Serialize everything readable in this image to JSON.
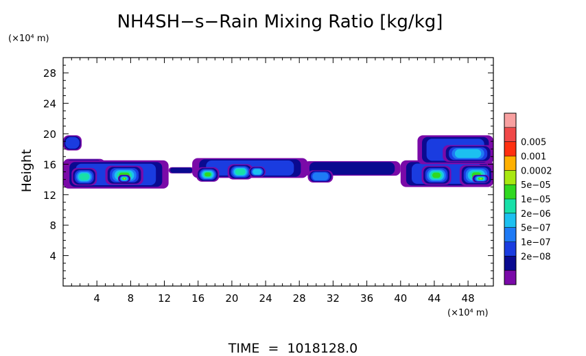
{
  "chart_data": {
    "type": "heatmap",
    "title": "NH4SH−s−Rain Mixing Ratio [kg/kg]",
    "xlabel": "",
    "ylabel": "Height",
    "x_unit_label": "(×10⁴ m)",
    "y_unit_label": "(×10⁴ m)",
    "xlim": [
      0,
      51
    ],
    "ylim": [
      0,
      30
    ],
    "x_ticks": [
      4,
      8,
      12,
      16,
      20,
      24,
      28,
      32,
      36,
      40,
      44,
      48
    ],
    "y_ticks": [
      4,
      8,
      12,
      16,
      20,
      24,
      28
    ],
    "footer": "TIME  =  1018128.0",
    "colorbar": {
      "labels": [
        "0.005",
        "0.001",
        "0.0002",
        "5e−05",
        "1e−05",
        "2e−06",
        "5e−07",
        "1e−07",
        "2e−08"
      ],
      "colors": [
        "#7a0aa8",
        "#0a0a90",
        "#1a3ce0",
        "#1e7af5",
        "#1cc0f0",
        "#18e0a8",
        "#30d820",
        "#a8e810",
        "#ffb000",
        "#ff3010",
        "#f04848",
        "#f8a0a0"
      ]
    },
    "regions": [
      {
        "x": [
          0.0,
          2.2
        ],
        "y": [
          17.8,
          19.8
        ],
        "level": 2
      },
      {
        "x": [
          0.0,
          5.0
        ],
        "y": [
          15.0,
          16.7
        ],
        "level": 2
      },
      {
        "x": [
          0.0,
          12.5
        ],
        "y": [
          12.8,
          16.5
        ],
        "level": 2
      },
      {
        "x": [
          12.5,
          15.5
        ],
        "y": [
          14.8,
          15.6
        ],
        "level": 1
      },
      {
        "x": [
          15.3,
          29.0
        ],
        "y": [
          14.2,
          16.8
        ],
        "level": 2
      },
      {
        "x": [
          28.5,
          40.0
        ],
        "y": [
          14.5,
          16.4
        ],
        "level": 1
      },
      {
        "x": [
          29.0,
          32.0
        ],
        "y": [
          13.6,
          15.2
        ],
        "level": 3
      },
      {
        "x": [
          40.0,
          51.0
        ],
        "y": [
          13.0,
          16.5
        ],
        "level": 2
      },
      {
        "x": [
          42.0,
          51.0
        ],
        "y": [
          16.0,
          19.8
        ],
        "level": 2
      },
      {
        "x": [
          1.0,
          4.0
        ],
        "y": [
          13.2,
          15.5
        ],
        "level": 5
      },
      {
        "x": [
          5.0,
          9.5
        ],
        "y": [
          13.3,
          15.8
        ],
        "level": 6
      },
      {
        "x": [
          6.5,
          8.0
        ],
        "y": [
          13.6,
          14.6
        ],
        "level": 8
      },
      {
        "x": [
          15.8,
          18.5
        ],
        "y": [
          13.7,
          15.6
        ],
        "level": 6
      },
      {
        "x": [
          19.5,
          22.5
        ],
        "y": [
          14.0,
          16.0
        ],
        "level": 5
      },
      {
        "x": [
          22.0,
          24.0
        ],
        "y": [
          14.3,
          15.7
        ],
        "level": 4
      },
      {
        "x": [
          42.5,
          46.0
        ],
        "y": [
          13.3,
          15.8
        ],
        "level": 6
      },
      {
        "x": [
          47.0,
          51.0
        ],
        "y": [
          13.2,
          15.9
        ],
        "level": 6
      },
      {
        "x": [
          48.5,
          50.5
        ],
        "y": [
          13.6,
          14.6
        ],
        "level": 8
      },
      {
        "x": [
          45.0,
          51.0
        ],
        "y": [
          16.3,
          18.5
        ],
        "level": 4
      }
    ]
  }
}
